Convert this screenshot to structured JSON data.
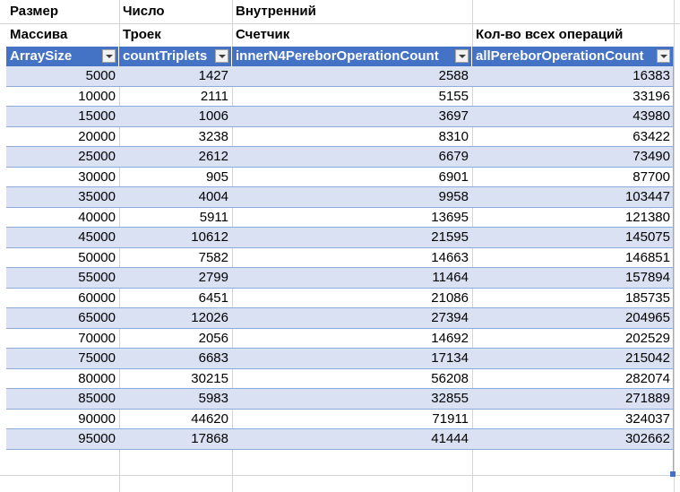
{
  "labels": {
    "col0_line1": "Размер",
    "col0_line2": "Массива",
    "col1_line1": "Число",
    "col1_line2": "Троек",
    "col2_line1": "Внутренний",
    "col2_line2": "Счетчик",
    "col3_line2": "Кол-во всех операций"
  },
  "headers": [
    "ArraySize",
    "countTriplets",
    "innerN4PereborOperationCount",
    "allPereborOperationCount"
  ],
  "rows": [
    [
      "5000",
      "1427",
      "2588",
      "16383"
    ],
    [
      "10000",
      "2111",
      "5155",
      "33196"
    ],
    [
      "15000",
      "1006",
      "3697",
      "43980"
    ],
    [
      "20000",
      "3238",
      "8310",
      "63422"
    ],
    [
      "25000",
      "2612",
      "6679",
      "73490"
    ],
    [
      "30000",
      "905",
      "6901",
      "87700"
    ],
    [
      "35000",
      "4004",
      "9958",
      "103447"
    ],
    [
      "40000",
      "5911",
      "13695",
      "121380"
    ],
    [
      "45000",
      "10612",
      "21595",
      "145075"
    ],
    [
      "50000",
      "7582",
      "14663",
      "146851"
    ],
    [
      "55000",
      "2799",
      "11464",
      "157894"
    ],
    [
      "60000",
      "6451",
      "21086",
      "185735"
    ],
    [
      "65000",
      "12026",
      "27394",
      "204965"
    ],
    [
      "70000",
      "2056",
      "14692",
      "202529"
    ],
    [
      "75000",
      "6683",
      "17134",
      "215042"
    ],
    [
      "80000",
      "30215",
      "56208",
      "282074"
    ],
    [
      "85000",
      "5983",
      "32855",
      "271889"
    ],
    [
      "90000",
      "44620",
      "71911",
      "324037"
    ],
    [
      "95000",
      "17868",
      "41444",
      "302662"
    ]
  ],
  "colors": {
    "header_bg": "#4472c4",
    "band_bg": "#d9e1f2",
    "row_line": "#8ea9db",
    "grid": "#d4d4d4"
  }
}
